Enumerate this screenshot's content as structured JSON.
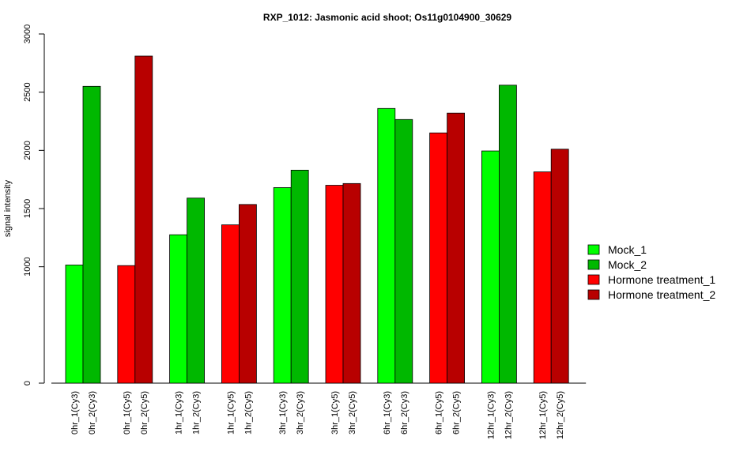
{
  "chart_data": {
    "type": "bar",
    "title": "RXP_1012: Jasmonic acid shoot; Os11g0104900_30629",
    "xlabel": "",
    "ylabel": "signal intensity",
    "ylim": [
      0,
      3000
    ],
    "yticks": [
      0,
      1000,
      1500,
      2000,
      2500,
      3000
    ],
    "groups": [
      {
        "labels": [
          "0hr_1(Cy3)",
          "0hr_2(Cy3)"
        ],
        "values": [
          1015,
          2550
        ],
        "series": [
          "Mock_1",
          "Mock_2"
        ]
      },
      {
        "labels": [
          "0hr_1(Cy5)",
          "0hr_2(Cy5)"
        ],
        "values": [
          1010,
          2810
        ],
        "series": [
          "Hormone treatment_1",
          "Hormone treatment_2"
        ]
      },
      {
        "labels": [
          "1hr_1(Cy3)",
          "1hr_2(Cy3)"
        ],
        "values": [
          1275,
          1590
        ],
        "series": [
          "Mock_1",
          "Mock_2"
        ]
      },
      {
        "labels": [
          "1hr_1(Cy5)",
          "1hr_2(Cy5)"
        ],
        "values": [
          1360,
          1535
        ],
        "series": [
          "Hormone treatment_1",
          "Hormone treatment_2"
        ]
      },
      {
        "labels": [
          "3hr_1(Cy3)",
          "3hr_2(Cy3)"
        ],
        "values": [
          1680,
          1830
        ],
        "series": [
          "Mock_1",
          "Mock_2"
        ]
      },
      {
        "labels": [
          "3hr_1(Cy5)",
          "3hr_2(Cy5)"
        ],
        "values": [
          1700,
          1715
        ],
        "series": [
          "Hormone treatment_1",
          "Hormone treatment_2"
        ]
      },
      {
        "labels": [
          "6hr_1(Cy3)",
          "6hr_2(Cy3)"
        ],
        "values": [
          2360,
          2265
        ],
        "series": [
          "Mock_1",
          "Mock_2"
        ]
      },
      {
        "labels": [
          "6hr_1(Cy5)",
          "6hr_2(Cy5)"
        ],
        "values": [
          2150,
          2320
        ],
        "series": [
          "Hormone treatment_1",
          "Hormone treatment_2"
        ]
      },
      {
        "labels": [
          "12hr_1(Cy3)",
          "12hr_2(Cy3)"
        ],
        "values": [
          1995,
          2560
        ],
        "series": [
          "Mock_1",
          "Mock_2"
        ]
      },
      {
        "labels": [
          "12hr_1(Cy5)",
          "12hr_2(Cy5)"
        ],
        "values": [
          1815,
          2010
        ],
        "series": [
          "Hormone treatment_1",
          "Hormone treatment_2"
        ]
      }
    ],
    "legend": {
      "position": "right",
      "entries": [
        {
          "name": "Mock_1",
          "color": "#00ff00"
        },
        {
          "name": "Mock_2",
          "color": "#00b800"
        },
        {
          "name": "Hormone treatment_1",
          "color": "#ff0000"
        },
        {
          "name": "Hormone treatment_2",
          "color": "#b80000"
        }
      ]
    },
    "grid": false
  }
}
